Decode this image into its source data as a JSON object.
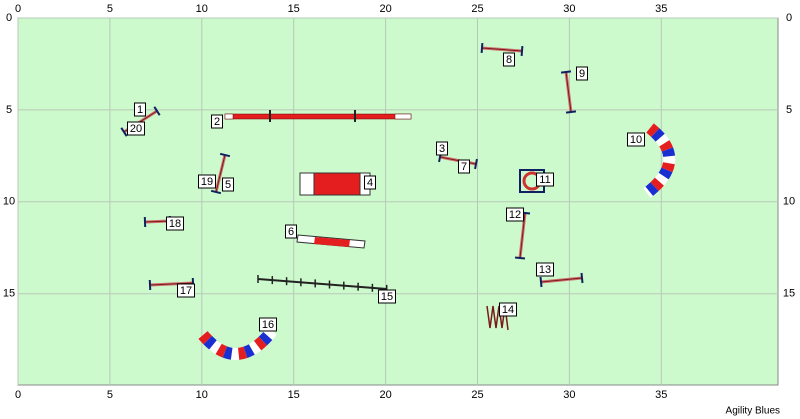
{
  "course": {
    "title": "Agility Blues",
    "axes": {
      "xticks": [
        0,
        5,
        10,
        15,
        20,
        25,
        30,
        35
      ],
      "yticks": [
        0,
        5,
        10,
        15
      ]
    },
    "obstacles": [
      "1",
      "2",
      "3",
      "4",
      "5",
      "6",
      "7",
      "8",
      "9",
      "10",
      "11",
      "12",
      "13",
      "14",
      "15",
      "16",
      "17",
      "18",
      "19",
      "20"
    ]
  }
}
